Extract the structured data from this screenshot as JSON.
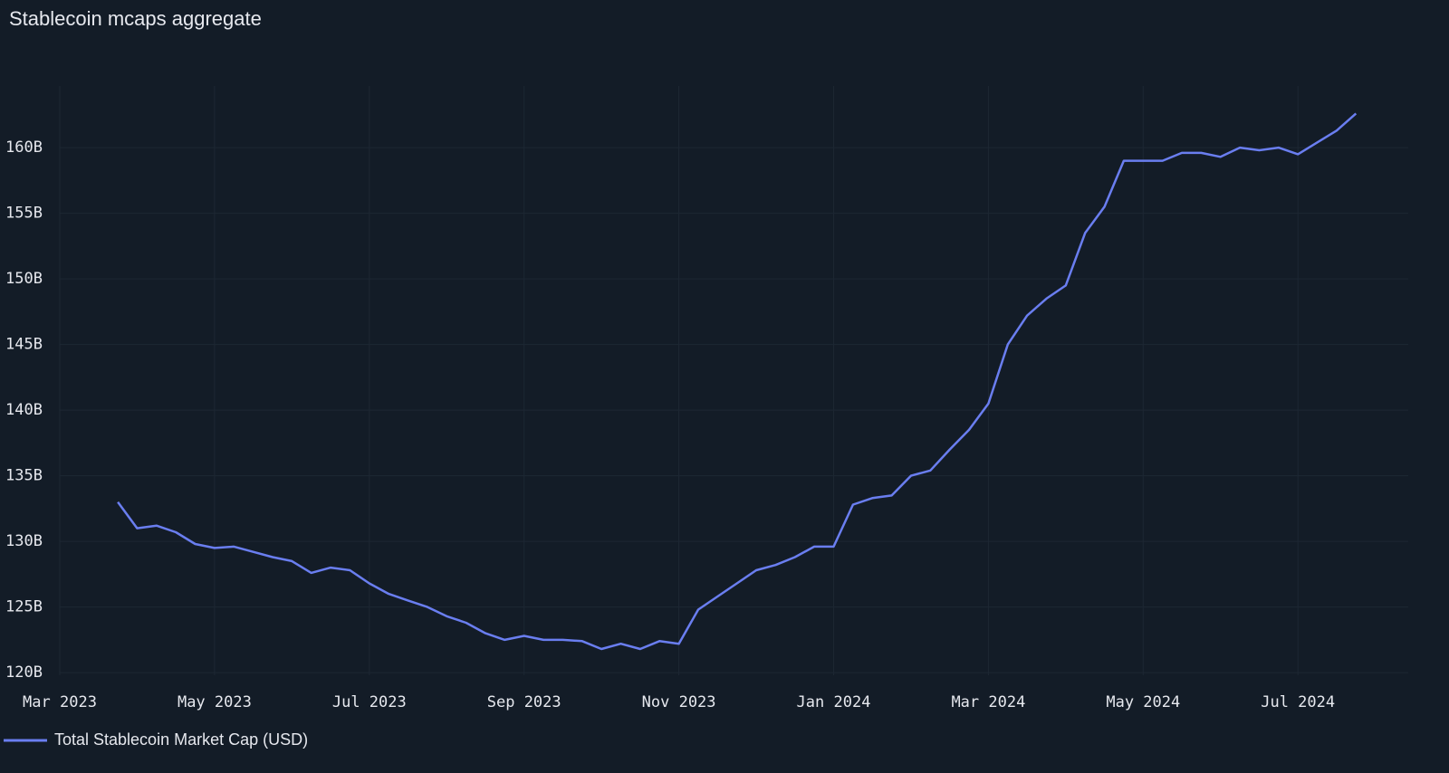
{
  "chart_data": {
    "type": "line",
    "title": "Stablecoin mcaps aggregate",
    "categories": [
      "Mar 2023",
      null,
      null,
      null,
      null,
      null,
      null,
      null,
      "May 2023",
      null,
      null,
      null,
      null,
      null,
      null,
      null,
      "Jul 2023",
      null,
      null,
      null,
      null,
      null,
      null,
      null,
      "Sep 2023",
      null,
      null,
      null,
      null,
      null,
      null,
      null,
      "Nov 2023",
      null,
      null,
      null,
      null,
      null,
      null,
      null,
      "Jan 2024",
      null,
      null,
      null,
      null,
      null,
      null,
      null,
      "Mar 2024",
      null,
      null,
      null,
      null,
      null,
      null,
      null,
      "May 2024",
      null,
      null,
      null,
      null,
      null,
      null,
      null,
      "Jul 2024",
      null,
      null,
      null,
      null,
      null
    ],
    "series": [
      {
        "name": "Total Stablecoin Market Cap (USD)",
        "color": "#6a7ef0",
        "values": [
          null,
          null,
          null,
          133.0,
          131.0,
          131.2,
          130.7,
          129.8,
          129.5,
          129.6,
          129.2,
          128.8,
          128.5,
          127.6,
          128.0,
          127.8,
          126.8,
          126.0,
          125.5,
          125.0,
          124.3,
          123.8,
          123.0,
          122.5,
          122.8,
          122.5,
          122.5,
          122.4,
          121.8,
          122.2,
          121.8,
          122.4,
          122.2,
          124.8,
          125.8,
          126.8,
          127.8,
          128.2,
          128.8,
          129.6,
          129.6,
          132.8,
          133.3,
          133.5,
          135.0,
          135.4,
          137.0,
          138.5,
          140.5,
          145.0,
          147.2,
          148.5,
          149.5,
          153.5,
          155.5,
          159.0,
          159.0,
          159.0,
          159.6,
          159.6,
          159.3,
          160.0,
          159.8,
          160.0,
          159.5,
          160.4,
          161.3,
          162.6,
          null,
          null
        ]
      }
    ],
    "ylim": [
      119.8,
      164.7
    ],
    "yticks": [
      {
        "value": 120,
        "label": "120B"
      },
      {
        "value": 125,
        "label": "125B"
      },
      {
        "value": 130,
        "label": "130B"
      },
      {
        "value": 135,
        "label": "135B"
      },
      {
        "value": 140,
        "label": "140B"
      },
      {
        "value": 145,
        "label": "145B"
      },
      {
        "value": 150,
        "label": "150B"
      },
      {
        "value": 155,
        "label": "155B"
      },
      {
        "value": 160,
        "label": "160B"
      }
    ],
    "grid": true
  }
}
